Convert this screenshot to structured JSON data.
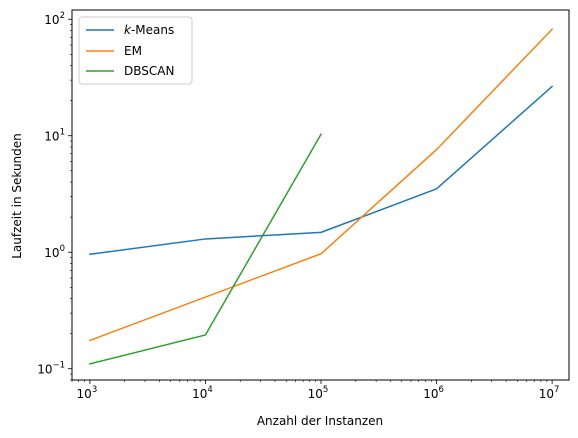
{
  "chart_data": {
    "type": "line",
    "xscale": "log",
    "yscale": "log",
    "xlabel": "Anzahl der Instanzen",
    "ylabel": "Laufzeit in Sekunden",
    "xlim": [
      700,
      14000000
    ],
    "ylim": [
      0.08,
      120
    ],
    "x_ticks": [
      {
        "value": 1000,
        "base": "10",
        "exp": "3"
      },
      {
        "value": 10000,
        "base": "10",
        "exp": "4"
      },
      {
        "value": 100000,
        "base": "10",
        "exp": "5"
      },
      {
        "value": 1000000,
        "base": "10",
        "exp": "6"
      },
      {
        "value": 10000000,
        "base": "10",
        "exp": "7"
      }
    ],
    "y_ticks": [
      {
        "value": 0.1,
        "base": "10",
        "exp": "−1"
      },
      {
        "value": 1,
        "base": "10",
        "exp": "0"
      },
      {
        "value": 10,
        "base": "10",
        "exp": "1"
      },
      {
        "value": 100,
        "base": "10",
        "exp": "2"
      }
    ],
    "legend_position": "top-left",
    "grid": false,
    "series": [
      {
        "name_prefix": "k",
        "name": "-Means",
        "color": "#1f77b4",
        "x": [
          1000,
          10000,
          100000,
          1000000,
          10000000
        ],
        "values": [
          0.96,
          1.3,
          1.48,
          3.5,
          26.5
        ]
      },
      {
        "name": "EM",
        "color": "#ff7f0e",
        "x": [
          1000,
          100000,
          1000000,
          10000000
        ],
        "values": [
          0.175,
          0.97,
          7.6,
          82
        ]
      },
      {
        "name": "DBSCAN",
        "color": "#2ca02c",
        "x": [
          1000,
          10000,
          100000
        ],
        "values": [
          0.11,
          0.195,
          10.3
        ]
      }
    ]
  }
}
